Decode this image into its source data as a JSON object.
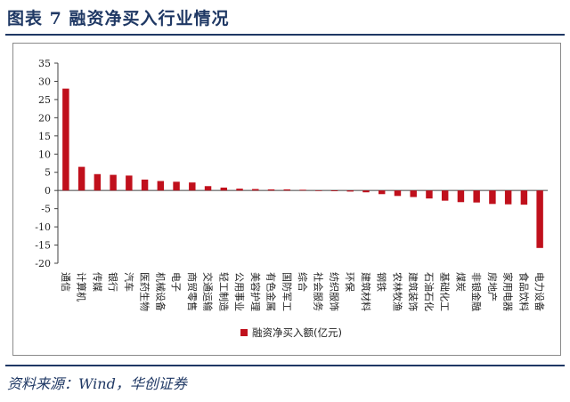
{
  "figure": {
    "title": "图表 7 融资净买入行业情况",
    "source": "资料来源：Wind，华创证券"
  },
  "colors": {
    "bar": "#c0101c",
    "title": "#1f3864",
    "axis": "#404040"
  },
  "chart_data": {
    "type": "bar",
    "categories": [
      "通信",
      "计算机",
      "传媒",
      "银行",
      "汽车",
      "医药生物",
      "机械设备",
      "电子",
      "商贸零售",
      "交通运输",
      "轻工制造",
      "公用事业",
      "美容护理",
      "有色金属",
      "国防军工",
      "综合",
      "社会服务",
      "纺织服饰",
      "环保",
      "建筑材料",
      "钢铁",
      "农林牧渔",
      "建筑装饰",
      "石油石化",
      "基础化工",
      "煤炭",
      "非银金融",
      "房地产",
      "家用电器",
      "食品饮料",
      "电力设备"
    ],
    "series": [
      {
        "name": "融资净买入额(亿元)",
        "values": [
          28.0,
          6.5,
          4.5,
          4.3,
          4.1,
          3.0,
          2.6,
          2.4,
          2.2,
          1.2,
          0.8,
          0.5,
          0.4,
          0.3,
          0.3,
          0.2,
          -0.1,
          -0.2,
          -0.3,
          -0.5,
          -1.0,
          -1.5,
          -1.8,
          -2.2,
          -2.8,
          -3.2,
          -3.3,
          -3.7,
          -3.8,
          -3.9,
          -15.8
        ]
      }
    ],
    "yticks": [
      "35",
      "30",
      "25",
      "20",
      "15",
      "10",
      "5",
      "0",
      "-5",
      "-10",
      "-15",
      "-20"
    ],
    "ylim": [
      -20,
      35
    ],
    "legend_position": "bottom-center",
    "grid": false
  }
}
